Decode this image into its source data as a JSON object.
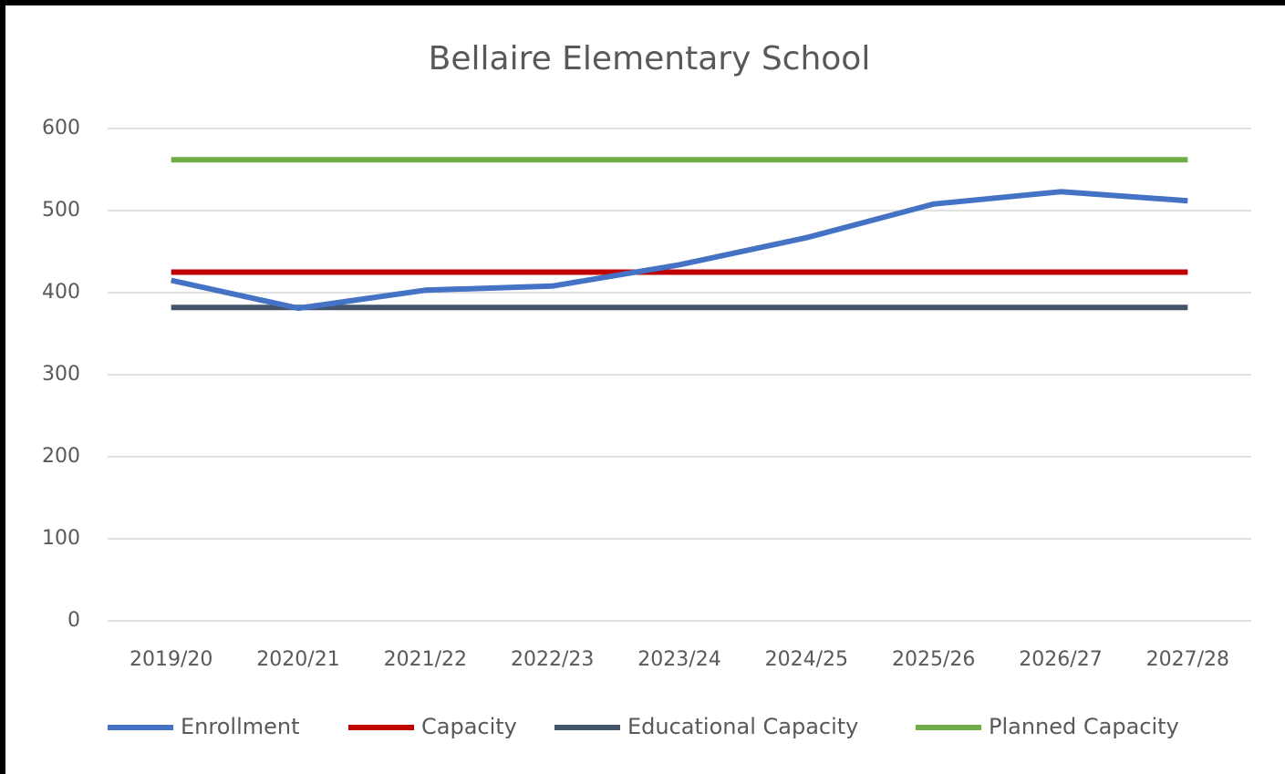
{
  "chart_data": {
    "type": "line",
    "title": "Bellaire Elementary School",
    "categories": [
      "2019/20",
      "2020/21",
      "2021/22",
      "2022/23",
      "2023/24",
      "2024/25",
      "2025/26",
      "2026/27",
      "2027/28"
    ],
    "series": [
      {
        "name": "Enrollment",
        "color": "#4472c4",
        "values": [
          415,
          381,
          403,
          408,
          434,
          467,
          508,
          523,
          512
        ]
      },
      {
        "name": "Capacity",
        "color": "#c00000",
        "values": [
          425,
          425,
          425,
          425,
          425,
          425,
          425,
          425,
          425
        ]
      },
      {
        "name": "Educational Capacity",
        "color": "#44546a",
        "values": [
          382,
          382,
          382,
          382,
          382,
          382,
          382,
          382,
          382
        ]
      },
      {
        "name": "Planned Capacity",
        "color": "#70ad47",
        "values": [
          562,
          562,
          562,
          562,
          562,
          562,
          562,
          562,
          562
        ]
      }
    ],
    "ylim": [
      0,
      600
    ],
    "yticks": [
      0,
      100,
      200,
      300,
      400,
      500,
      600
    ],
    "grid": true,
    "legend": "bottom"
  }
}
